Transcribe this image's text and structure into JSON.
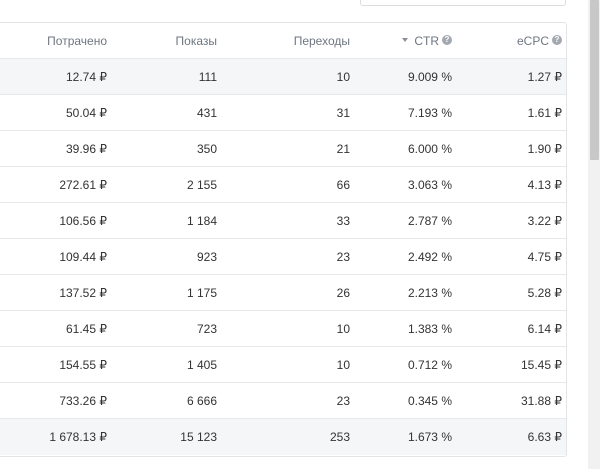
{
  "columns": {
    "spent": "Потрачено",
    "impressions": "Показы",
    "clicks": "Переходы",
    "ctr": "CTR",
    "ecpc": "eCPC"
  },
  "help_glyph": "?",
  "rows": [
    {
      "spent": "12.74 ₽",
      "impressions": "111",
      "clicks": "10",
      "ctr": "9.009 %",
      "ecpc": "1.27 ₽"
    },
    {
      "spent": "50.04 ₽",
      "impressions": "431",
      "clicks": "31",
      "ctr": "7.193 %",
      "ecpc": "1.61 ₽"
    },
    {
      "spent": "39.96 ₽",
      "impressions": "350",
      "clicks": "21",
      "ctr": "6.000 %",
      "ecpc": "1.90 ₽"
    },
    {
      "spent": "272.61 ₽",
      "impressions": "2 155",
      "clicks": "66",
      "ctr": "3.063 %",
      "ecpc": "4.13 ₽"
    },
    {
      "spent": "106.56 ₽",
      "impressions": "1 184",
      "clicks": "33",
      "ctr": "2.787 %",
      "ecpc": "3.22 ₽"
    },
    {
      "spent": "109.44 ₽",
      "impressions": "923",
      "clicks": "23",
      "ctr": "2.492 %",
      "ecpc": "4.75 ₽"
    },
    {
      "spent": "137.52 ₽",
      "impressions": "1 175",
      "clicks": "26",
      "ctr": "2.213 %",
      "ecpc": "5.28 ₽"
    },
    {
      "spent": "61.45 ₽",
      "impressions": "723",
      "clicks": "10",
      "ctr": "1.383 %",
      "ecpc": "6.14 ₽"
    },
    {
      "spent": "154.55 ₽",
      "impressions": "1 405",
      "clicks": "10",
      "ctr": "0.712 %",
      "ecpc": "15.45 ₽"
    },
    {
      "spent": "733.26 ₽",
      "impressions": "6 666",
      "clicks": "23",
      "ctr": "0.345 %",
      "ecpc": "31.88 ₽"
    }
  ],
  "total": {
    "spent": "1 678.13 ₽",
    "impressions": "15 123",
    "clicks": "253",
    "ctr": "1.673 %",
    "ecpc": "6.63 ₽"
  },
  "icons": {
    "sort": "sort-descending-icon",
    "help": "help-circle-icon"
  },
  "colors": {
    "header_text": "#6e7680",
    "row_alt": "#f5f6f8",
    "border": "#e7e8ec"
  }
}
